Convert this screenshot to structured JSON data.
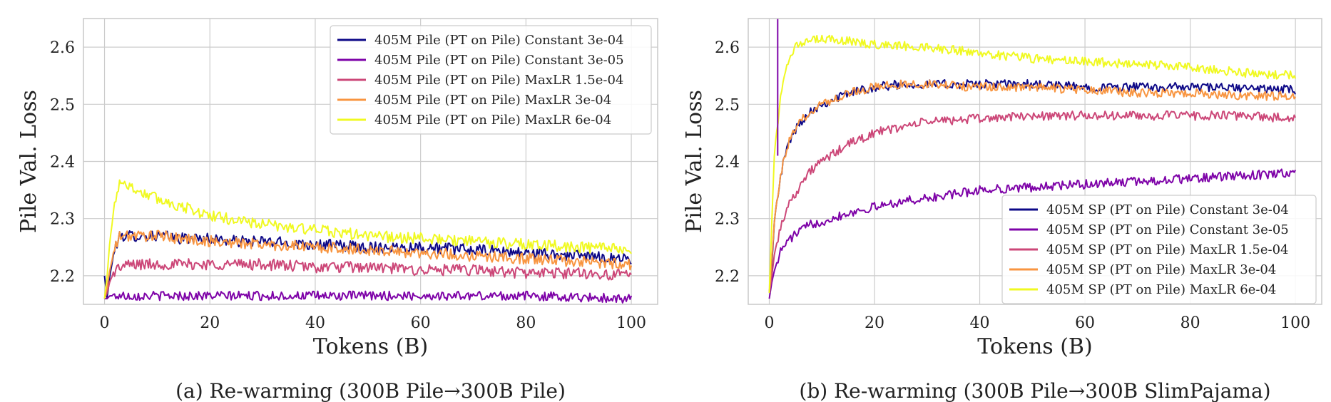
{
  "chart_data": [
    {
      "type": "line",
      "title": "",
      "xlabel": "Tokens (B)",
      "ylabel": "Pile Val. Loss",
      "xlim": [
        -4,
        105
      ],
      "ylim": [
        2.15,
        2.65
      ],
      "xticks": [
        0,
        20,
        40,
        60,
        80,
        100
      ],
      "yticks": [
        2.2,
        2.3,
        2.4,
        2.5,
        2.6
      ],
      "grid": true,
      "legend_position": "top-right",
      "caption": "(a) Re-warming (300B Pile→300B Pile)",
      "series": [
        {
          "name": "405M Pile (PT on Pile) Constant 3e-04",
          "color": "#0d0887",
          "x": [
            0,
            0.5,
            1,
            2,
            3,
            4,
            6,
            10,
            15,
            20,
            25,
            30,
            40,
            50,
            60,
            70,
            80,
            90,
            100
          ],
          "y": [
            2.2,
            2.16,
            2.2,
            2.25,
            2.27,
            2.27,
            2.27,
            2.27,
            2.265,
            2.265,
            2.26,
            2.26,
            2.255,
            2.25,
            2.25,
            2.245,
            2.24,
            2.235,
            2.23
          ],
          "noise": 0.01
        },
        {
          "name": "405M Pile (PT on Pile) Constant 3e-05",
          "color": "#7e03a8",
          "x": [
            0,
            0.5,
            1,
            2,
            5,
            20,
            40,
            60,
            80,
            100
          ],
          "y": [
            2.16,
            2.16,
            2.165,
            2.165,
            2.165,
            2.165,
            2.165,
            2.165,
            2.165,
            2.16
          ],
          "noise": 0.008
        },
        {
          "name": "405M Pile (PT on Pile) MaxLR 1.5e-04",
          "color": "#cc4778",
          "x": [
            0,
            0.5,
            1,
            2,
            3,
            5,
            10,
            20,
            30,
            40,
            50,
            60,
            70,
            80,
            90,
            100
          ],
          "y": [
            2.16,
            2.17,
            2.19,
            2.21,
            2.215,
            2.22,
            2.22,
            2.22,
            2.22,
            2.215,
            2.215,
            2.21,
            2.21,
            2.205,
            2.205,
            2.2
          ],
          "noise": 0.01
        },
        {
          "name": "405M Pile (PT on Pile) MaxLR 3e-04",
          "color": "#f89540",
          "x": [
            0,
            0.5,
            1,
            2,
            3,
            4,
            6,
            10,
            15,
            20,
            30,
            40,
            50,
            60,
            70,
            80,
            90,
            100
          ],
          "y": [
            2.16,
            2.18,
            2.21,
            2.25,
            2.27,
            2.27,
            2.27,
            2.27,
            2.265,
            2.26,
            2.255,
            2.25,
            2.245,
            2.24,
            2.235,
            2.23,
            2.225,
            2.22
          ],
          "noise": 0.01
        },
        {
          "name": "405M Pile (PT on Pile) MaxLR 6e-04",
          "color": "#f0f921",
          "x": [
            0,
            0.5,
            1,
            2,
            3,
            4,
            6,
            10,
            15,
            20,
            30,
            40,
            50,
            60,
            70,
            80,
            90,
            100
          ],
          "y": [
            2.16,
            2.2,
            2.26,
            2.33,
            2.37,
            2.36,
            2.35,
            2.335,
            2.32,
            2.305,
            2.29,
            2.28,
            2.27,
            2.265,
            2.26,
            2.255,
            2.25,
            2.245
          ],
          "noise": 0.01
        }
      ]
    },
    {
      "type": "line",
      "title": "",
      "xlabel": "Tokens (B)",
      "ylabel": "Pile Val. Loss",
      "xlim": [
        -4,
        105
      ],
      "ylim": [
        2.15,
        2.65
      ],
      "xticks": [
        0,
        20,
        40,
        60,
        80,
        100
      ],
      "yticks": [
        2.2,
        2.3,
        2.4,
        2.5,
        2.6
      ],
      "grid": true,
      "legend_position": "bottom-right",
      "caption": "(b) Re-warming (300B Pile→300B SlimPajama)",
      "series": [
        {
          "name": "405M SP (PT on Pile) Constant 3e-04",
          "color": "#0d0887",
          "x": [
            0,
            0.5,
            1,
            2,
            3,
            4,
            6,
            8,
            10,
            15,
            20,
            25,
            30,
            40,
            50,
            60,
            70,
            80,
            90,
            100
          ],
          "y": [
            2.17,
            2.22,
            2.3,
            2.37,
            2.41,
            2.44,
            2.47,
            2.49,
            2.5,
            2.52,
            2.53,
            2.535,
            2.535,
            2.535,
            2.535,
            2.53,
            2.53,
            2.53,
            2.528,
            2.525
          ],
          "noise": 0.008
        },
        {
          "name": "405M SP (PT on Pile) Constant 3e-05",
          "color": "#7e03a8",
          "x": [
            0,
            0.5,
            1,
            2,
            3,
            4,
            6,
            8,
            10,
            15,
            20,
            25,
            30,
            40,
            50,
            60,
            70,
            80,
            90,
            100
          ],
          "y": [
            2.16,
            2.19,
            2.21,
            2.24,
            2.255,
            2.265,
            2.28,
            2.29,
            2.295,
            2.31,
            2.32,
            2.33,
            2.335,
            2.35,
            2.355,
            2.36,
            2.365,
            2.37,
            2.375,
            2.38
          ],
          "noise": 0.008
        },
        {
          "name": "405M SP (PT on Pile) MaxLR 1.5e-04",
          "color": "#cc4778",
          "x": [
            0,
            0.5,
            1,
            2,
            3,
            4,
            6,
            8,
            10,
            15,
            20,
            25,
            30,
            40,
            50,
            60,
            70,
            80,
            90,
            100
          ],
          "y": [
            2.17,
            2.2,
            2.24,
            2.28,
            2.31,
            2.33,
            2.36,
            2.385,
            2.4,
            2.43,
            2.45,
            2.46,
            2.47,
            2.475,
            2.48,
            2.48,
            2.48,
            2.48,
            2.48,
            2.475
          ],
          "noise": 0.008
        },
        {
          "name": "405M SP (PT on Pile) MaxLR 3e-04",
          "color": "#f89540",
          "x": [
            0,
            0.5,
            1,
            2,
            3,
            4,
            6,
            8,
            10,
            15,
            20,
            25,
            30,
            40,
            50,
            60,
            70,
            80,
            90,
            100
          ],
          "y": [
            2.17,
            2.23,
            2.3,
            2.37,
            2.41,
            2.44,
            2.47,
            2.49,
            2.5,
            2.52,
            2.53,
            2.535,
            2.535,
            2.53,
            2.53,
            2.525,
            2.52,
            2.52,
            2.515,
            2.515
          ],
          "noise": 0.008
        },
        {
          "name": "405M SP (PT on Pile) MaxLR 6e-04",
          "color": "#f0f921",
          "x": [
            0,
            0.5,
            1,
            2,
            3,
            4,
            5,
            6,
            8,
            10,
            15,
            20,
            30,
            40,
            50,
            60,
            70,
            80,
            90,
            100
          ],
          "y": [
            2.17,
            2.3,
            2.42,
            2.5,
            2.56,
            2.59,
            2.6,
            2.605,
            2.61,
            2.615,
            2.61,
            2.605,
            2.6,
            2.59,
            2.58,
            2.575,
            2.57,
            2.565,
            2.555,
            2.55
          ],
          "noise": 0.008
        },
        {
          "name": "",
          "color": "#7e03a8",
          "x": [
            1.6,
            1.6
          ],
          "y": [
            2.41,
            2.65
          ],
          "noise": 0
        }
      ]
    }
  ]
}
